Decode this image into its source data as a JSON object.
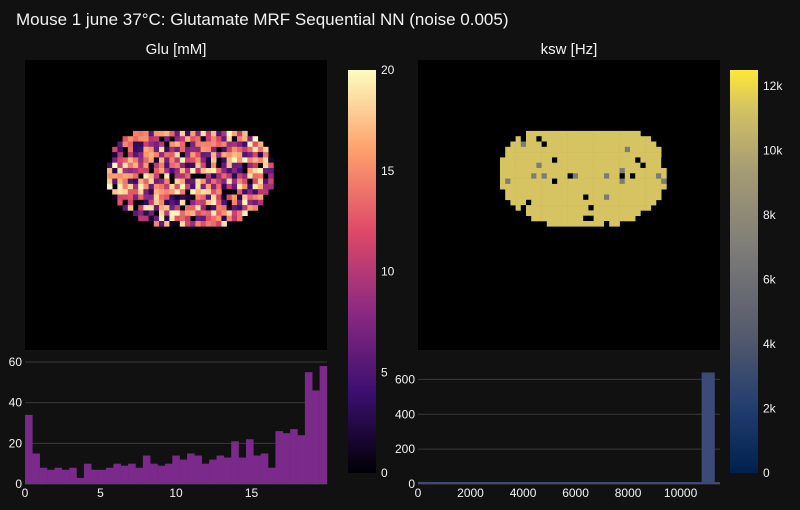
{
  "title": "Mouse 1 june 37°C: Glutamate MRF Sequential NN (noise 0.005)",
  "chart_data": [
    {
      "type": "heatmap",
      "title": "Glu [mM]",
      "colorscale": "magma",
      "zlim": [
        0,
        20
      ],
      "colorbar_ticks": [
        "0",
        "5",
        "10",
        "15",
        "20"
      ]
    },
    {
      "type": "bar",
      "title": "",
      "x_ticks": [
        "0",
        "5",
        "10",
        "15"
      ],
      "y_ticks": [
        "0",
        "20",
        "40",
        "60"
      ],
      "xlim": [
        0,
        20
      ],
      "ylim": [
        0,
        60
      ],
      "bin_width": 0.4,
      "values": [
        34,
        15,
        8,
        7,
        8,
        7,
        8,
        3,
        10,
        7,
        7,
        8,
        10,
        9,
        10,
        8,
        14,
        10,
        9,
        10,
        14,
        12,
        15,
        14,
        10,
        12,
        14,
        13,
        21,
        13,
        22,
        14,
        15,
        8,
        26,
        25,
        27,
        24,
        55,
        46,
        58
      ],
      "color": "#7b2a8b"
    },
    {
      "type": "heatmap",
      "title": "ksw [Hz]",
      "colorscale": "cividis",
      "zlim": [
        0,
        12500
      ],
      "colorbar_ticks": [
        "0",
        "2k",
        "4k",
        "6k",
        "8k",
        "10k",
        "12k"
      ]
    },
    {
      "type": "bar",
      "title": "",
      "x_ticks": [
        "0",
        "2000",
        "4000",
        "6000",
        "8000",
        "10000"
      ],
      "y_ticks": [
        "0",
        "200",
        "400",
        "600"
      ],
      "xlim": [
        0,
        11500
      ],
      "ylim": [
        0,
        700
      ],
      "bars": [
        {
          "x0": 0,
          "x1": 500,
          "value": 12
        },
        {
          "x0": 10800,
          "x1": 11300,
          "value": 640
        }
      ],
      "color": "#3d4a77"
    }
  ]
}
